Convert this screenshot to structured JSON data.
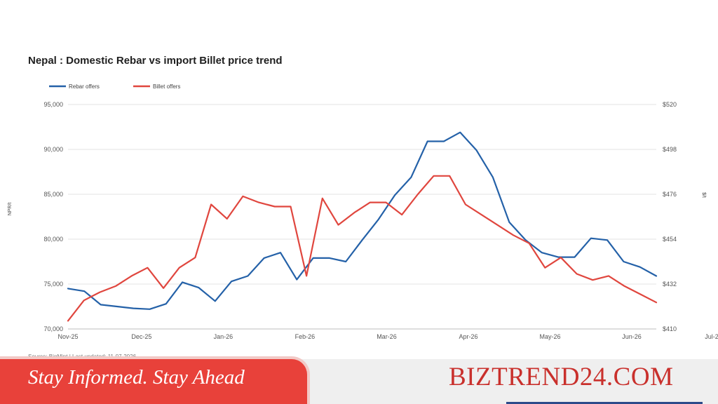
{
  "chart_data": {
    "type": "line",
    "title": "Nepal : Domestic Rebar vs import Billet price trend",
    "ylabel_left": "NPR/t",
    "ylabel_right": "$/t",
    "xlabel": "",
    "ylim_left": [
      70000,
      95000
    ],
    "ylim_right": [
      410,
      520
    ],
    "yticks_left": [
      "70,000",
      "75,000",
      "80,000",
      "85,000",
      "90,000",
      "95,000"
    ],
    "yticks_right": [
      "$410",
      "$432",
      "$454",
      "$476",
      "$498",
      "$520"
    ],
    "x_tick_labels": [
      "Nov-25",
      "Dec-25",
      "Jan-26",
      "Feb-26",
      "Mar-26",
      "Apr-26",
      "May-26",
      "Jun-26",
      "Jul-26"
    ],
    "x_tick_index": [
      0,
      4.5,
      9.5,
      14.5,
      19.5,
      24.5,
      29.5,
      34.5,
      39.5
    ],
    "grid": "horizontal",
    "legend_position": "top-left",
    "series": [
      {
        "name": "Rebar offers",
        "color": "#2461a8",
        "axis": "left",
        "values": [
          74500,
          74200,
          72700,
          72500,
          72300,
          72200,
          72800,
          75200,
          74600,
          73100,
          75300,
          75900,
          77900,
          78500,
          75500,
          77900,
          77900,
          77500,
          79900,
          82200,
          84900,
          86900,
          90900,
          90900,
          91900,
          89900,
          86900,
          81900,
          79900,
          78500,
          78000,
          78000,
          80100,
          79900,
          77500,
          76900,
          75900
        ]
      },
      {
        "name": "Billet offers",
        "color": "#e0463e",
        "axis": "right",
        "values": [
          414,
          424,
          428,
          431,
          436,
          440,
          430,
          440,
          445,
          471,
          464,
          475,
          472,
          470,
          470,
          436,
          474,
          461,
          467,
          472,
          472,
          466,
          476,
          485,
          485,
          471,
          466,
          461,
          456,
          452,
          440,
          445,
          437,
          434,
          436,
          431,
          427,
          423
        ]
      }
    ],
    "source_note": "Source: BigMint | Last updated: 11-07-2026"
  },
  "footer": {
    "tagline": "Stay Informed. Stay Ahead",
    "brand": "BIZTREND24.COM"
  }
}
